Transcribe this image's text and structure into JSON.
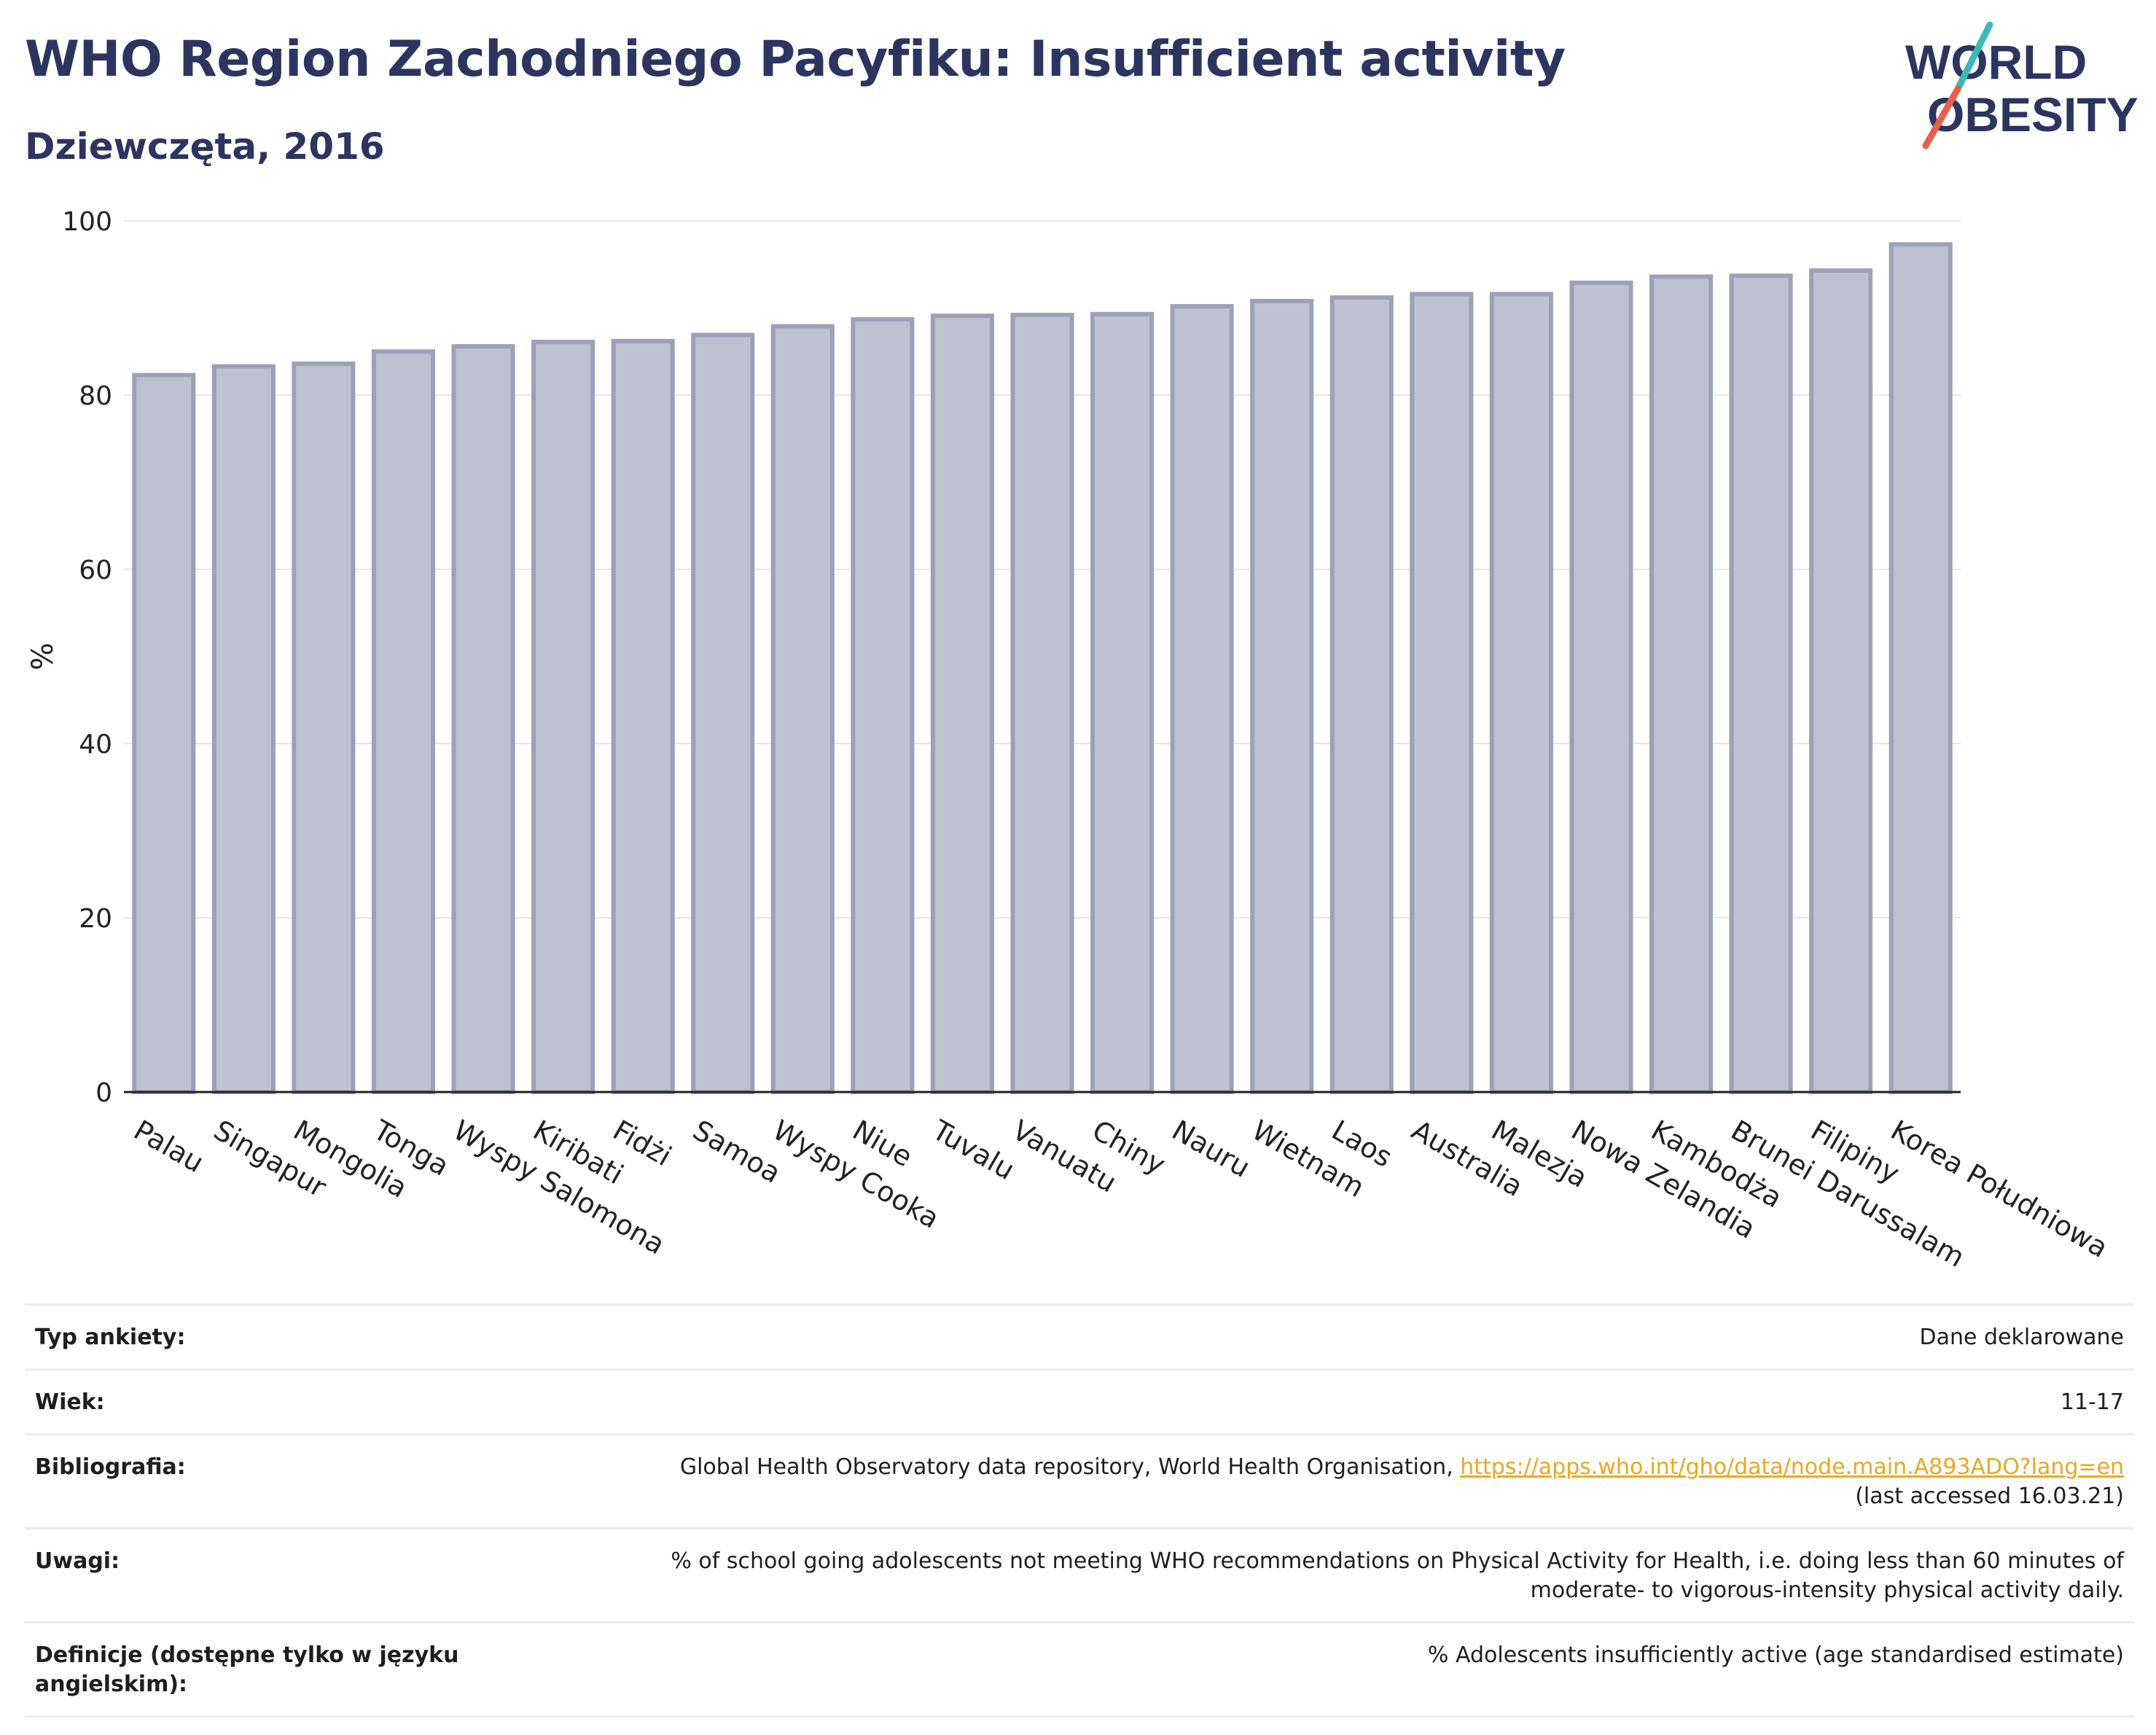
{
  "header": {
    "title": "WHO Region Zachodniego Pacyfiku: Insufficient activity",
    "subtitle": "Dziewczęta, 2016"
  },
  "logo": {
    "line1": "WORLD",
    "line2": "OBESITY",
    "accent_teal": "#3bb9b4",
    "accent_red": "#e8604c",
    "navy": "#2b3560"
  },
  "chart_data": {
    "type": "bar",
    "categories": [
      "Palau",
      "Singapur",
      "Mongolia",
      "Tonga",
      "Wyspy Salomona",
      "Kiribati",
      "Fidżi",
      "Samoa",
      "Wyspy Cooka",
      "Niue",
      "Tuvalu",
      "Vanuatu",
      "Chiny",
      "Nauru",
      "Wietnam",
      "Laos",
      "Australia",
      "Malezja",
      "Nowa Zelandia",
      "Kambodża",
      "Brunei Darussalam",
      "Filipiny",
      "Korea Południowa"
    ],
    "values": [
      82.3,
      83.3,
      83.6,
      85.0,
      85.6,
      86.1,
      86.2,
      86.9,
      87.9,
      88.7,
      89.1,
      89.2,
      89.3,
      90.2,
      90.8,
      91.2,
      91.6,
      91.6,
      92.9,
      93.6,
      93.7,
      94.3,
      97.3
    ],
    "ylabel": "%",
    "ylim": [
      0,
      100
    ],
    "yticks": [
      0,
      20,
      40,
      60,
      80,
      100
    ],
    "grid": true,
    "bar_fill": "#bec2d0",
    "bar_stroke": "#9ca1b8"
  },
  "info": {
    "rows": [
      {
        "label": "Typ ankiety:",
        "value": "Dane deklarowane"
      },
      {
        "label": "Wiek:",
        "value": "11-17"
      },
      {
        "label": "Bibliografia:",
        "value_prefix": "Global Health Observatory data repository, World Health Organisation, ",
        "link": "https://apps.who.int/gho/data/node.main.A893ADO?lang=en",
        "value_suffix": "(last accessed 16.03.21)"
      },
      {
        "label": "Uwagi:",
        "value": "% of school going adolescents not meeting WHO recommendations on Physical Activity for Health, i.e. doing less than 60 minutes of",
        "value2": "moderate- to vigorous-intensity physical activity daily."
      },
      {
        "label": "Definicje (dostępne tylko w języku angielskim):",
        "value": "% Adolescents insufficiently active (age standardised estimate)"
      }
    ]
  }
}
